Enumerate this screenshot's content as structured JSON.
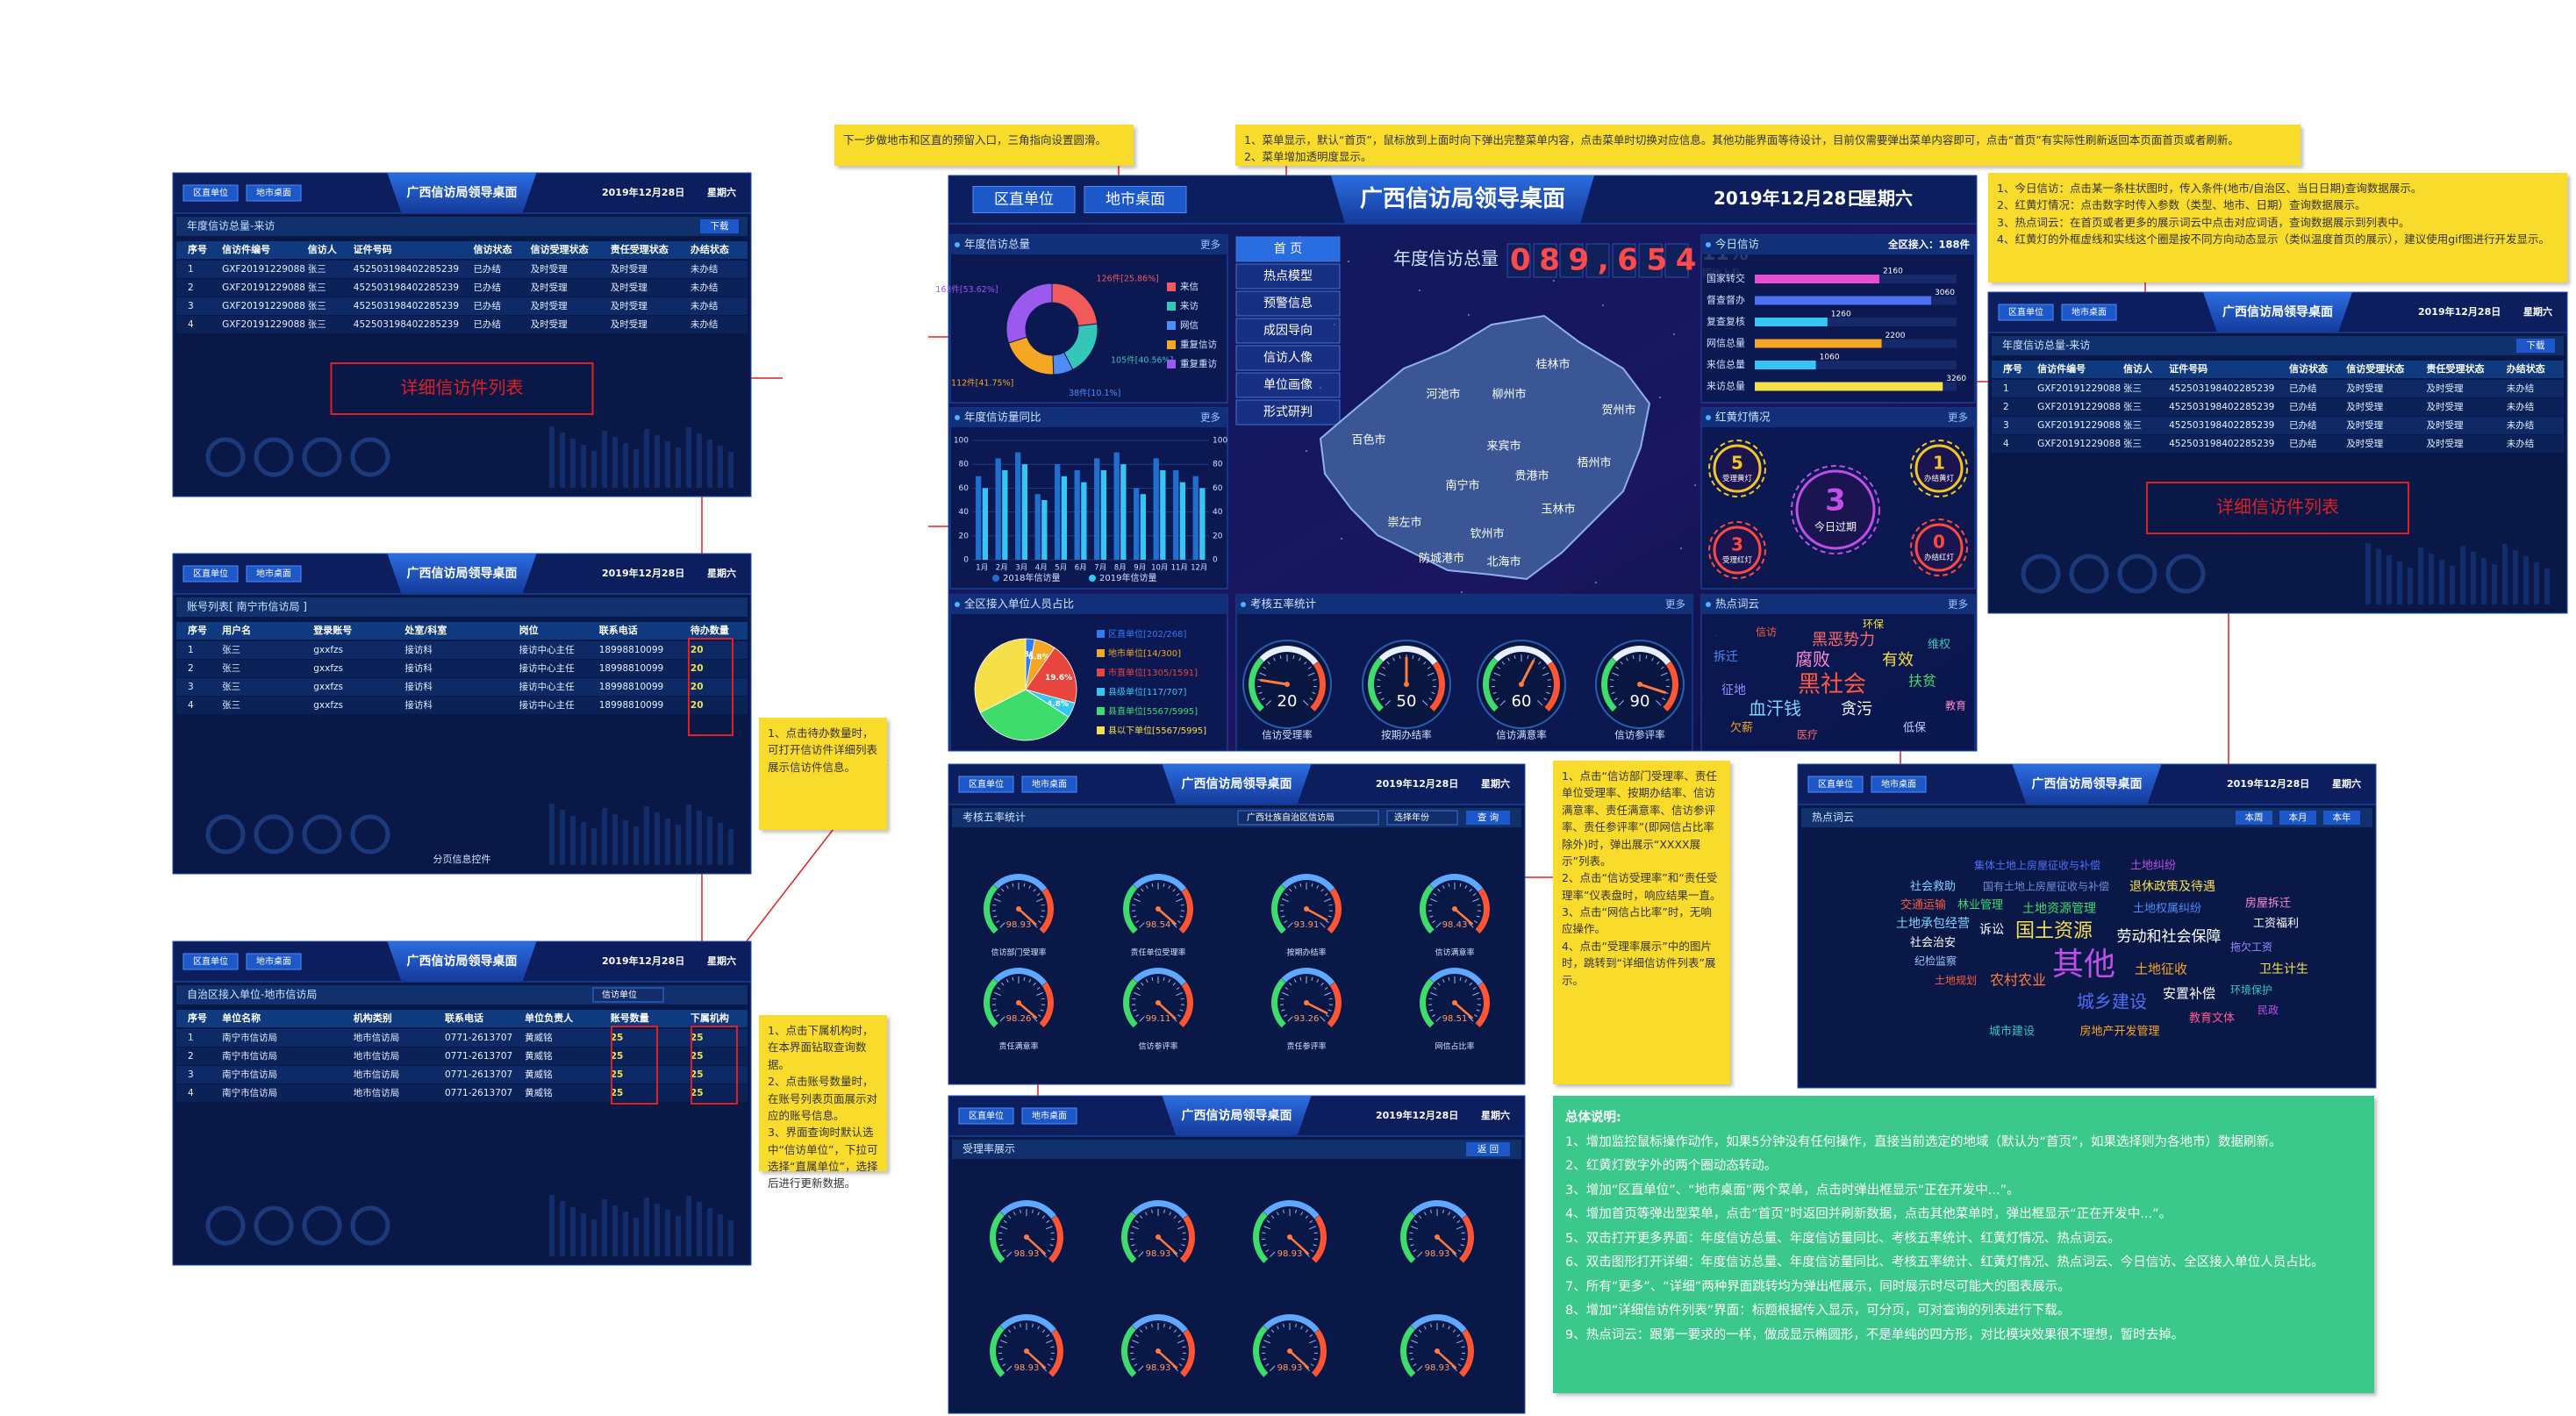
{
  "header": {
    "unit_tab": "区直单位",
    "city_tab": "地市桌面",
    "title": "广西信访局领导桌面",
    "date": "2019年12月28日",
    "weekday": "星期六"
  },
  "more": "更多",
  "menu": [
    "首 页",
    "热点模型",
    "预警信息",
    "成因导向",
    "信访人像",
    "单位画像",
    "形式研判"
  ],
  "total": {
    "label": "年度信访总量",
    "value_text": "089,654",
    "rate": "11%",
    "rate_label": "同比上升"
  },
  "donut": {
    "title": "年度信访总量",
    "categories": [
      "来信",
      "来访",
      "网信",
      "重复信访",
      "重复重访"
    ],
    "values": [
      126,
      105,
      38,
      112,
      163
    ],
    "value_labels": [
      "126件[25.86%]",
      "105件[40.56%]",
      "38件[10.1%]",
      "112件[41.75%]",
      "163件[53.62%]"
    ],
    "colors": [
      "#f05a5a",
      "#36c6b8",
      "#4f8cf5",
      "#f5a623",
      "#9b59f0"
    ]
  },
  "compare": {
    "title": "年度信访量同比",
    "categories": [
      "1月",
      "2月",
      "3月",
      "4月",
      "5月",
      "6月",
      "7月",
      "8月",
      "9月",
      "10月",
      "11月",
      "12月"
    ],
    "series": [
      {
        "name": "2018年信访量",
        "color": "#1f6fd1",
        "values": [
          70,
          85,
          90,
          55,
          80,
          75,
          85,
          90,
          60,
          85,
          75,
          70
        ]
      },
      {
        "name": "2019年信访量",
        "color": "#36c6f4",
        "values": [
          60,
          75,
          80,
          50,
          70,
          65,
          75,
          80,
          55,
          75,
          65,
          60
        ]
      }
    ],
    "ylim": [
      0,
      100
    ],
    "yticks": [
      0,
      20,
      40,
      60,
      80,
      100
    ]
  },
  "units": {
    "title": "全区接入单位人员占比",
    "categories": [
      "区直单位[202/268]",
      "地市单位[14/300]",
      "市直单位[1305/1591]",
      "县级单位[117/707]",
      "县直单位[5567/5995]",
      "县以下单位[5567/5995]"
    ],
    "values": [
      2.86,
      6.8,
      19.6,
      4.8,
      33.5,
      32.44
    ],
    "value_labels": [
      "2.86%",
      "6.8%",
      "19.6%",
      "4.8%",
      null,
      null
    ],
    "colors": [
      "#2e7cf6",
      "#f5a623",
      "#e8453c",
      "#36c6f4",
      "#3ddc6b",
      "#f5e04a"
    ]
  },
  "five_rates": {
    "title": "考核五率统计",
    "gauges": [
      {
        "label": "信访受理率",
        "value": 20
      },
      {
        "label": "按期办结率",
        "value": 50
      },
      {
        "label": "信访满意率",
        "value": 60
      },
      {
        "label": "信访参评率",
        "value": 90
      }
    ]
  },
  "gauge_lim": [
    0,
    100
  ],
  "map": {
    "cities": [
      "桂林市",
      "河池市",
      "柳州市",
      "贺州市",
      "百色市",
      "来宾市",
      "梧州市",
      "南宁市",
      "贵港市",
      "玉林市",
      "崇左市",
      "钦州市",
      "防城港市",
      "北海市"
    ]
  },
  "today": {
    "title": "今日信访",
    "summary": "全区接入：188件",
    "categories": [
      "国家转交",
      "督查督办",
      "复查复核",
      "网信总量",
      "来信总量",
      "来访总量"
    ],
    "values": [
      2160,
      3060,
      1260,
      2200,
      1060,
      3260
    ],
    "colors": [
      "#e84fd0",
      "#4f6ff5",
      "#36c6f4",
      "#f5a623",
      "#36c6f4",
      "#f5e04a"
    ],
    "xlim": [
      0,
      3500
    ]
  },
  "lights": {
    "title": "红黄灯情况",
    "items": [
      {
        "value": "5",
        "label": "受理黄灯"
      },
      {
        "value": "1",
        "label": "办结黄灯"
      },
      {
        "value": "3",
        "label": "今日过期"
      },
      {
        "value": "3",
        "label": "受理红灯"
      },
      {
        "value": "0",
        "label": "办结红灯"
      }
    ]
  },
  "cloud": {
    "title": "热点词云",
    "words": [
      "黑恶势力",
      "腐败",
      "有效",
      "黑社会",
      "血汗钱",
      "贪污",
      "扶贫",
      "拆迁",
      "征地",
      "维权",
      "欠薪",
      "低保",
      "医疗",
      "教育",
      "环保",
      "信访"
    ]
  },
  "visits_table": {
    "title": "年度信访总量-来访",
    "button": "下载",
    "detail": "详细信访件列表",
    "columns": [
      "序号",
      "信访件编号",
      "信访人",
      "证件号码",
      "信访状态",
      "信访受理状态",
      "责任受理状态",
      "办结状态"
    ],
    "rows": [
      [
        "1",
        "GXF20191229088",
        "张三",
        "452503198402285239",
        "已办结",
        "及时受理",
        "及时受理",
        "未办结"
      ],
      [
        "2",
        "GXF20191229088",
        "张三",
        "452503198402285239",
        "已办结",
        "及时受理",
        "及时受理",
        "未办结"
      ],
      [
        "3",
        "GXF20191229088",
        "张三",
        "452503198402285239",
        "已办结",
        "及时受理",
        "及时受理",
        "未办结"
      ],
      [
        "4",
        "GXF20191229088",
        "张三",
        "452503198402285239",
        "已办结",
        "及时受理",
        "及时受理",
        "未办结"
      ]
    ]
  },
  "accounts": {
    "title": "账号列表[ 南宁市信访局 ]",
    "footer": "分页信息控件",
    "columns": [
      "序号",
      "用户名",
      "登录账号",
      "处室/科室",
      "岗位",
      "联系电话",
      "待办数量"
    ],
    "rows": [
      [
        "1",
        "张三",
        "gxxfzs",
        "接访科",
        "接访中心主任",
        "18998810099",
        "20"
      ],
      [
        "2",
        "张三",
        "gxxfzs",
        "接访科",
        "接访中心主任",
        "18998810099",
        "20"
      ],
      [
        "3",
        "张三",
        "gxxfzs",
        "接访科",
        "接访中心主任",
        "18998810099",
        "20"
      ],
      [
        "4",
        "张三",
        "gxxfzs",
        "接访科",
        "接访中心主任",
        "18998810099",
        "20"
      ]
    ]
  },
  "agencies": {
    "title": "自治区接入单位-地市信访局",
    "select": "信访单位",
    "columns": [
      "序号",
      "单位名称",
      "机构类别",
      "联系电话",
      "单位负责人",
      "账号数量",
      "下属机构"
    ],
    "rows": [
      [
        "1",
        "南宁市信访局",
        "地市信访局",
        "0771-2613707",
        "黄威铭",
        "25",
        "25"
      ],
      [
        "2",
        "南宁市信访局",
        "地市信访局",
        "0771-2613707",
        "黄威铭",
        "25",
        "25"
      ],
      [
        "3",
        "南宁市信访局",
        "地市信访局",
        "0771-2613707",
        "黄威铭",
        "25",
        "25"
      ],
      [
        "4",
        "南宁市信访局",
        "地市信访局",
        "0771-2613707",
        "黄威铭",
        "25",
        "25"
      ]
    ]
  },
  "rates_panel": {
    "title": "考核五率统计",
    "select": "广西壮族自治区信访局",
    "year": "选择年份",
    "button": "查 询",
    "gauges": [
      {
        "value": 98.93,
        "label": "信访部门受理率"
      },
      {
        "value": 98.54,
        "label": "责任单位受理率"
      },
      {
        "value": 93.91,
        "label": "按期办结率"
      },
      {
        "value": 98.43,
        "label": "信访满意率"
      },
      {
        "value": 98.26,
        "label": "责任满意率"
      },
      {
        "value": 99.11,
        "label": "信访参评率"
      },
      {
        "value": 93.26,
        "label": "责任参评率"
      },
      {
        "value": 98.51,
        "label": "网信占比率"
      }
    ]
  },
  "accept_panel": {
    "title": "受理率展示",
    "button": "返 回",
    "values": [
      98.93,
      98.93,
      98.93,
      98.93,
      98.93,
      98.93,
      98.93,
      98.93
    ]
  },
  "hot_panel": {
    "title": "热点词云",
    "buttons": [
      "本周",
      "本月",
      "本年"
    ],
    "words": [
      "其他",
      "国土资源",
      "劳动和社会保障",
      "城乡建设",
      "土地征收",
      "安置补偿",
      "农村农业",
      "土地承包经营",
      "城市建设",
      "房地产开发管理",
      "教育文体",
      "卫生计生",
      "土地资源管理",
      "退休政策及待遇",
      "土地纠纷",
      "土地权属纠纷",
      "社会救助",
      "交通运输",
      "林业管理",
      "诉讼",
      "社会治安",
      "工资福利",
      "房屋拆迁",
      "拖欠工资",
      "环境保护",
      "集体土地上房屋征收与补偿",
      "国有土地上房屋征收与补偿",
      "纪检监察",
      "土地规划",
      "民政"
    ]
  },
  "notes": {
    "entry": [
      "下一步做地市和区直的预留入口，三角指向设置圆滑。"
    ],
    "menu": [
      "1、菜单显示，默认“首页”，鼠标放到上面时向下弹出完整菜单内容，点击菜单时切换对应信息。其他功能界面等待设计，目前仅需要弹出菜单内容即可，点击“首页”有实际性刷新返回本页面首页或者刷新。",
      "2、菜单增加透明度显示。"
    ],
    "today": [
      "1、今日信访：点击某一条柱状图时，传入条件(地市/自治区、当日日期)查询数据展示。",
      "2、红黄灯情况：点击数字时传入参数（类型、地市、日期）查询数据展示。",
      "3、热点词云：在首页或者更多的展示词云中点击对应词语，查询数据展示到列表中。",
      "4、红黄灯的外框虚线和实线这个圈是按不同方向动态显示（类似温度首页的展示），建议使用gif图进行开发显示。"
    ],
    "pending": [
      "1、点击待办数量时，可打开信访件详细列表展示信访件信息。"
    ],
    "agency": [
      "1、点击下属机构时，在本界面钻取查询数据。",
      "2、点击账号数量时，在账号列表页面展示对应的账号信息。",
      "3、界面查询时默认选中“信访单位”，下拉可选择“直属单位”，选择后进行更新数据。"
    ],
    "rates": [
      "1、点击“信访部门受理率、责任单位受理率、按期办结率、信访满意率、责任满意率、信访参评率、责任参评率”(即网信占比率除外)时，弹出展示“XXXX展示”列表。",
      "2、点击“信访受理率”和“责任受理率”仪表盘时，响应结果一直。",
      "3、点击“网信占比率”时，无响应操作。",
      "4、点击“受理率展示”中的图片时，跳转到“详细信访件列表”展示。"
    ],
    "summary": {
      "title": "总体说明:",
      "items": [
        "1、增加监控鼠标操作动作，如果5分钟没有任何操作，直接当前选定的地域（默认为“首页”，如果选择则为各地市）数据刷新。",
        "2、红黄灯数字外的两个圈动态转动。",
        "3、增加“区直单位”、“地市桌面”两个菜单，点击时弹出框显示“正在开发中...”。",
        "4、增加首页等弹出型菜单，点击“首页”时返回并刷新数据，点击其他菜单时，弹出框显示“正在开发中...”。",
        "5、双击打开更多界面：年度信访总量、年度信访量同比、考核五率统计、红黄灯情况、热点词云。",
        "6、双击图形打开详细：年度信访总量、年度信访量同比、考核五率统计、红黄灯情况、热点词云、今日信访、全区接入单位人员占比。",
        "7、所有“更多”、“详细”两种界面跳转均为弹出框展示，同时展示时尽可能大的图表展示。",
        "8、增加“详细信访件列表”界面：标题根据传入显示，可分页，可对查询的列表进行下载。",
        "9、热点词云：跟第一要求的一样，做成显示椭圆形，不是单纯的四方形，对比模块效果很不理想，暂时去掉。"
      ]
    }
  }
}
